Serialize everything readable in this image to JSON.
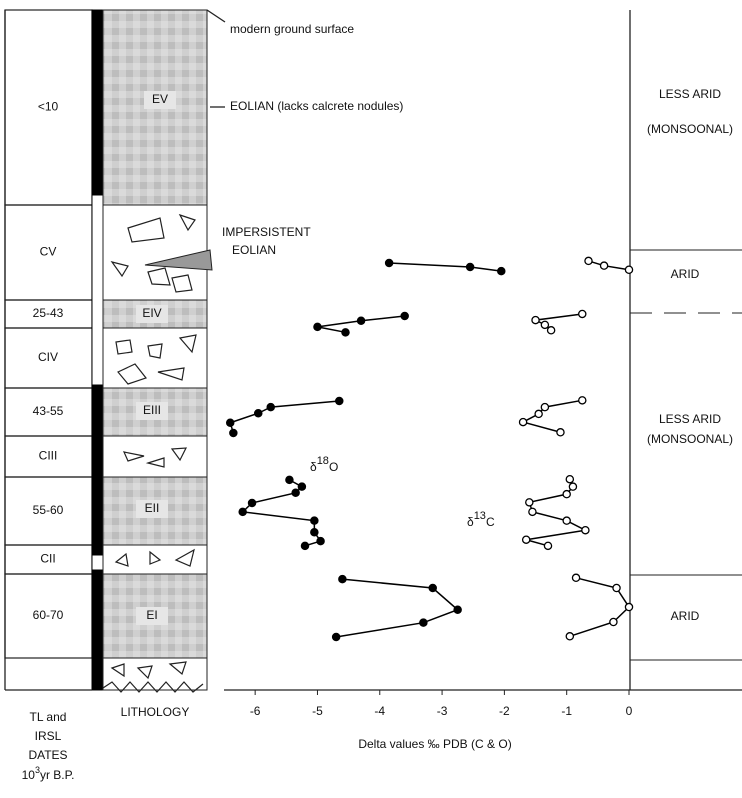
{
  "chart_data": {
    "type": "line",
    "xlabel": "Delta values ‰ PDB (C & O)",
    "xlim": [
      -6.5,
      0
    ],
    "xticks": [
      -6,
      -5,
      -4,
      -3,
      -2,
      -1,
      0
    ],
    "ylim": [
      0,
      100
    ],
    "series": [
      {
        "name_parts": [
          "δ",
          "18",
          "O"
        ],
        "color": "#000000",
        "marker": "filled",
        "values": [
          -3.85,
          -2.55,
          -2.05,
          null,
          -3.6,
          -4.3,
          -5.0,
          -4.55,
          null,
          -4.65,
          -5.75,
          -5.95,
          -6.4,
          -6.35,
          null,
          -5.45,
          -5.25,
          -5.35,
          -6.05,
          -6.2,
          -5.05,
          -5.05,
          -4.95,
          -5.2,
          null,
          -4.6,
          -3.15,
          -2.75,
          -3.3,
          -4.7
        ],
        "depth": [
          37.2,
          37.8,
          38.4,
          null,
          45.0,
          45.7,
          46.6,
          47.4,
          null,
          57.5,
          58.4,
          59.3,
          60.7,
          62.2,
          null,
          69.1,
          70.1,
          71.0,
          72.5,
          73.8,
          75.1,
          76.8,
          78.1,
          78.8,
          null,
          83.7,
          85.0,
          88.2,
          90.1,
          92.2
        ]
      },
      {
        "name_parts": [
          "δ",
          "13",
          "C"
        ],
        "color": "#000000",
        "marker": "open",
        "values": [
          -0.65,
          -0.4,
          0,
          null,
          -0.75,
          -1.5,
          -1.35,
          -1.25,
          null,
          -0.75,
          -1.35,
          -1.45,
          -1.7,
          -1.1,
          null,
          -0.95,
          -0.9,
          -1.0,
          -1.6,
          -1.55,
          -1.0,
          -0.7,
          -1.65,
          -1.3,
          null,
          -0.85,
          -0.2,
          0,
          -0.25,
          -0.95
        ],
        "depth": [
          36.9,
          37.6,
          38.2,
          null,
          44.7,
          45.6,
          46.3,
          47.1,
          null,
          57.4,
          58.4,
          59.4,
          60.6,
          62.1,
          null,
          69.0,
          70.1,
          71.2,
          72.4,
          73.8,
          75.1,
          76.5,
          77.9,
          78.8,
          null,
          83.5,
          85.0,
          87.8,
          90.0,
          92.1
        ]
      }
    ],
    "date_column": {
      "labels": [
        "<10",
        "CV",
        "25-43",
        "CIV",
        "43-55",
        "CIII",
        "55-60",
        "CII",
        "60-70"
      ],
      "footer": [
        "TL and",
        "IRSL",
        "DATES"
      ],
      "footer_units": [
        "10",
        "3",
        "yr B.P."
      ]
    },
    "lithology": {
      "units": [
        "EV",
        "EIV",
        "EIII",
        "EII",
        "EI"
      ],
      "label": "LITHOLOGY"
    },
    "climate": [
      "LESS ARID",
      "(MONSOONAL)",
      "ARID",
      "LESS ARID",
      "(MONSOONAL)",
      "ARID"
    ],
    "annotations": [
      "modern ground surface",
      "EOLIAN (lacks calcrete nodules)",
      "IMPERSISTENT",
      "EOLIAN"
    ]
  }
}
